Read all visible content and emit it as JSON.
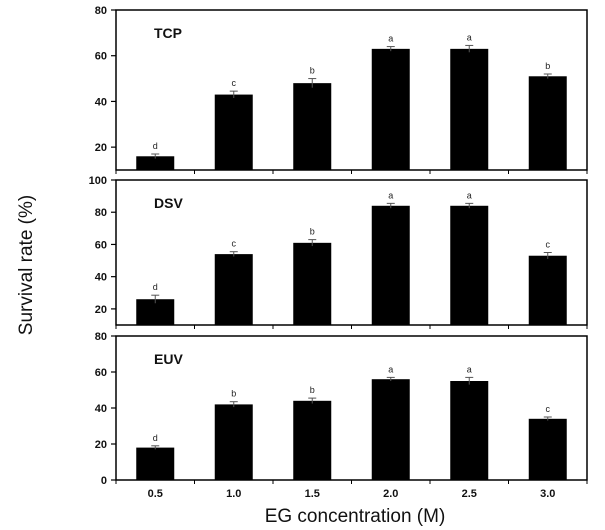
{
  "chart_data": {
    "xlabel": "EG concentration (M)",
    "ylabel": "Survival rate (%)",
    "categories": [
      "0.5",
      "1.0",
      "1.5",
      "2.0",
      "2.5",
      "3.0"
    ],
    "panels": [
      {
        "type": "bar",
        "title": "TCP",
        "categories": [
          "0.5",
          "1.0",
          "1.5",
          "2.0",
          "2.5",
          "3.0"
        ],
        "values": [
          16,
          43,
          48,
          63,
          63,
          51
        ],
        "errors": [
          1,
          1.5,
          2,
          1,
          1.5,
          1
        ],
        "letters": [
          "d",
          "c",
          "b",
          "a",
          "a",
          "b"
        ],
        "ylim": [
          10,
          80
        ],
        "yticks": [
          20,
          40,
          60,
          80
        ],
        "bar_color": "#000000"
      },
      {
        "type": "bar",
        "title": "DSV",
        "categories": [
          "0.5",
          "1.0",
          "1.5",
          "2.0",
          "2.5",
          "3.0"
        ],
        "values": [
          26,
          54,
          61,
          84,
          84,
          53
        ],
        "errors": [
          2.5,
          1.5,
          2,
          1.5,
          1.5,
          2
        ],
        "letters": [
          "d",
          "c",
          "b",
          "a",
          "a",
          "c"
        ],
        "ylim": [
          10,
          100
        ],
        "yticks": [
          20,
          40,
          60,
          80,
          100
        ],
        "bar_color": "#000000"
      },
      {
        "type": "bar",
        "title": "EUV",
        "categories": [
          "0.5",
          "1.0",
          "1.5",
          "2.0",
          "2.5",
          "3.0"
        ],
        "values": [
          18,
          42,
          44,
          56,
          55,
          34
        ],
        "errors": [
          1,
          1.5,
          1.5,
          1,
          2,
          1
        ],
        "letters": [
          "d",
          "b",
          "b",
          "a",
          "a",
          "c"
        ],
        "ylim": [
          0,
          80
        ],
        "yticks": [
          0,
          20,
          40,
          60,
          80
        ],
        "bar_color": "#000000"
      }
    ]
  }
}
